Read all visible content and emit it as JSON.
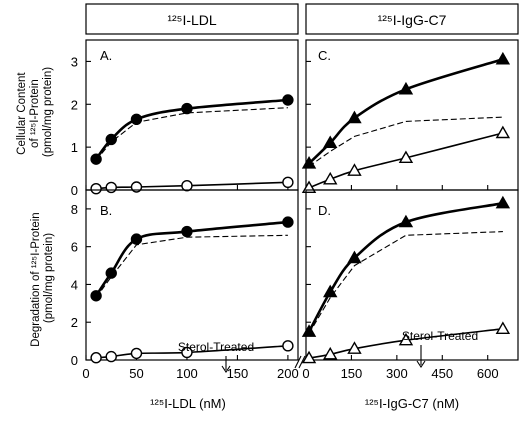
{
  "figure": {
    "header_left": "¹²⁵I-LDL",
    "header_right": "¹²⁵I-IgG-C7",
    "ylabel_top": [
      "Cellular Content",
      "of ¹²⁵I-Protein",
      "(pmol/mg protein)"
    ],
    "ylabel_bottom": [
      "Degradation of ¹²⁵I-Protein",
      "(pmol/mg protein)"
    ],
    "xlabel_left": "¹²⁵I-LDL (nM)",
    "xlabel_right": "¹²⁵I-IgG-C7 (nM)",
    "annotation_sterol": "Sterol-Treated"
  },
  "chart_data": [
    {
      "panel": "A",
      "type": "line",
      "xlim": [
        0,
        210
      ],
      "ylim": [
        0,
        3.5
      ],
      "xticks": [
        0,
        50,
        100,
        150,
        200
      ],
      "yticks": [
        0,
        1,
        2,
        3
      ],
      "series": [
        {
          "marker": "filled-circle",
          "line": "solid",
          "x": [
            10,
            25,
            50,
            100,
            200
          ],
          "y": [
            0.72,
            1.18,
            1.65,
            1.9,
            2.1
          ]
        },
        {
          "marker": "open-circle",
          "line": "solid",
          "x": [
            10,
            25,
            50,
            100,
            200
          ],
          "y": [
            0.03,
            0.06,
            0.07,
            0.1,
            0.18
          ]
        },
        {
          "marker": "none",
          "line": "dashed",
          "x": [
            10,
            25,
            50,
            100,
            200
          ],
          "y": [
            0.69,
            1.12,
            1.58,
            1.8,
            1.92
          ]
        }
      ]
    },
    {
      "panel": "B",
      "type": "line",
      "xlim": [
        0,
        210
      ],
      "ylim": [
        0,
        9
      ],
      "xticks": [
        0,
        50,
        100,
        150,
        200
      ],
      "xticklabels": [
        "0",
        "50",
        "100",
        "150",
        "200"
      ],
      "yticks": [
        0,
        2,
        4,
        6,
        8
      ],
      "series": [
        {
          "marker": "filled-circle",
          "line": "solid",
          "x": [
            10,
            25,
            50,
            100,
            200
          ],
          "y": [
            3.4,
            4.6,
            6.4,
            6.8,
            7.3
          ]
        },
        {
          "marker": "open-circle",
          "line": "solid",
          "x": [
            10,
            25,
            50,
            100,
            200
          ],
          "y": [
            0.12,
            0.18,
            0.35,
            0.4,
            0.75
          ]
        },
        {
          "marker": "none",
          "line": "dashed",
          "x": [
            10,
            25,
            50,
            100,
            200
          ],
          "y": [
            3.3,
            4.4,
            6.1,
            6.5,
            6.6
          ]
        }
      ]
    },
    {
      "panel": "C",
      "type": "line",
      "xlim": [
        0,
        700
      ],
      "ylim": [
        0,
        3.5
      ],
      "xticks": [
        0,
        150,
        300,
        450,
        600
      ],
      "yticks": [
        0,
        1,
        2,
        3
      ],
      "series": [
        {
          "marker": "filled-triangle",
          "line": "solid",
          "x": [
            10,
            80,
            160,
            330,
            650
          ],
          "y": [
            0.62,
            1.1,
            1.68,
            2.35,
            3.05
          ]
        },
        {
          "marker": "open-triangle",
          "line": "solid",
          "x": [
            10,
            80,
            160,
            330,
            650
          ],
          "y": [
            0.05,
            0.25,
            0.45,
            0.75,
            1.33
          ]
        },
        {
          "marker": "none",
          "line": "dashed",
          "x": [
            10,
            80,
            160,
            330,
            650
          ],
          "y": [
            0.55,
            0.9,
            1.25,
            1.6,
            1.7
          ]
        }
      ]
    },
    {
      "panel": "D",
      "type": "line",
      "xlim": [
        0,
        700
      ],
      "ylim": [
        0,
        9
      ],
      "xticks": [
        0,
        150,
        300,
        450,
        600
      ],
      "xticklabels": [
        "0",
        "150",
        "300",
        "450",
        "600"
      ],
      "yticks": [
        0,
        2,
        4,
        6,
        8
      ],
      "series": [
        {
          "marker": "filled-triangle",
          "line": "solid",
          "x": [
            10,
            80,
            160,
            330,
            650
          ],
          "y": [
            1.5,
            3.6,
            5.4,
            7.3,
            8.3
          ]
        },
        {
          "marker": "open-triangle",
          "line": "solid",
          "x": [
            10,
            80,
            160,
            330,
            650
          ],
          "y": [
            0.1,
            0.3,
            0.6,
            1.05,
            1.65
          ]
        },
        {
          "marker": "none",
          "line": "dashed",
          "x": [
            10,
            80,
            160,
            330,
            650
          ],
          "y": [
            1.4,
            3.3,
            5.0,
            6.6,
            6.8
          ]
        }
      ]
    }
  ]
}
